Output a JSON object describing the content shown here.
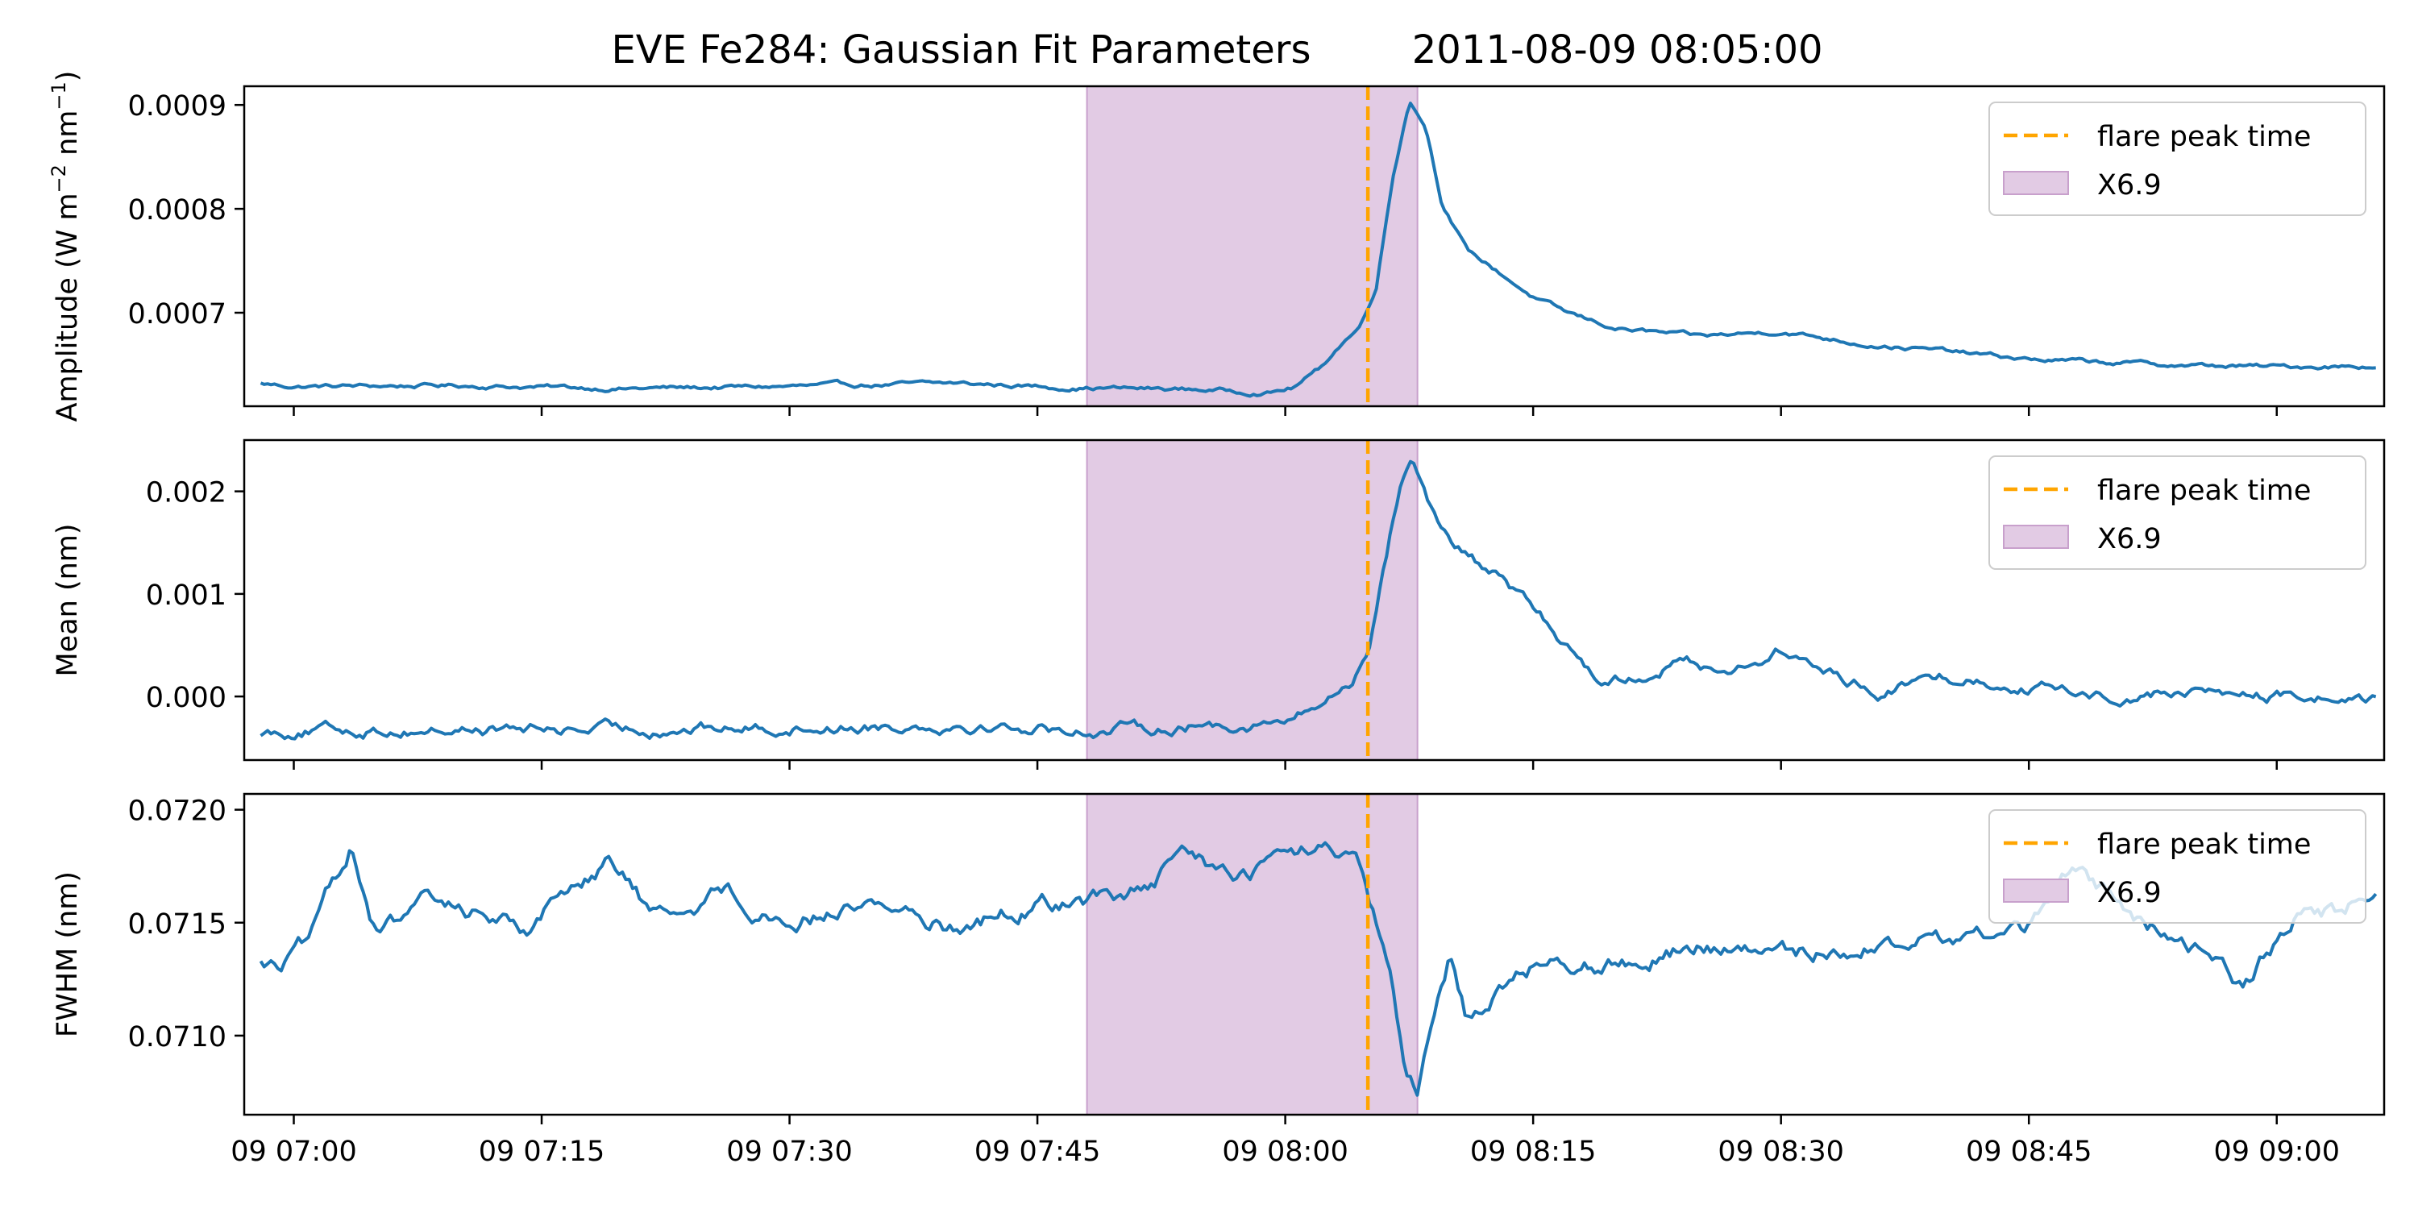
{
  "figure": {
    "title_left": "EVE Fe284: Gaussian Fit Parameters",
    "title_right": "2011-08-09 08:05:00"
  },
  "colors": {
    "line": "#1f77b4",
    "peak_line": "#ffa500",
    "shade_fill": "#e2cbe4",
    "shade_edge": "#c8a0cc",
    "axes": "#000000"
  },
  "chart_data": [
    {
      "type": "line",
      "ylabel_main": "Amplitude (W m",
      "ylabel_exp1": "−2",
      "ylabel_mid": " nm",
      "ylabel_exp2": "−1",
      "ylabel_end": ")",
      "xlim": [
        "2011-08-09 06:57:00",
        "2011-08-09 09:06:30"
      ],
      "ylim": [
        0.00061,
        0.000918
      ],
      "yticks": [
        0.0007,
        0.0008,
        0.0009
      ],
      "ytick_labels": [
        "0.0007",
        "0.0008",
        "0.0009"
      ],
      "grid": false,
      "legend": {
        "placement": "upper right",
        "entries": [
          "flare peak time",
          "X6.9"
        ]
      },
      "shaded_span": {
        "start": "2011-08-09 07:48:00",
        "end": "2011-08-09 08:08:00",
        "label": "X6.9"
      },
      "vline": {
        "x": "2011-08-09 08:05:00",
        "label": "flare peak time"
      },
      "series": [
        {
          "anchors": [
            [
              "2011-08-09 06:57:00",
              0.000633
            ],
            [
              "2011-08-09 07:00:00",
              0.000629
            ],
            [
              "2011-08-09 07:10:00",
              0.00063
            ],
            [
              "2011-08-09 07:20:00",
              0.000627
            ],
            [
              "2011-08-09 07:30:00",
              0.000629
            ],
            [
              "2011-08-09 07:40:00",
              0.000632
            ],
            [
              "2011-08-09 07:47:00",
              0.000628
            ],
            [
              "2011-08-09 07:55:00",
              0.000626
            ],
            [
              "2011-08-09 07:59:00",
              0.000623
            ],
            [
              "2011-08-09 08:00:30",
              0.000628
            ],
            [
              "2011-08-09 08:02:00",
              0.000645
            ],
            [
              "2011-08-09 08:03:30",
              0.000672
            ],
            [
              "2011-08-09 08:04:30",
              0.000686
            ],
            [
              "2011-08-09 08:05:30",
              0.000725
            ],
            [
              "2011-08-09 08:06:30",
              0.00083
            ],
            [
              "2011-08-09 08:07:30",
              0.000905
            ],
            [
              "2011-08-09 08:08:30",
              0.00088
            ],
            [
              "2011-08-09 08:09:30",
              0.000805
            ],
            [
              "2011-08-09 08:11:00",
              0.00076
            ],
            [
              "2011-08-09 08:13:00",
              0.000738
            ],
            [
              "2011-08-09 08:15:00",
              0.000715
            ],
            [
              "2011-08-09 08:17:00",
              0.0007
            ],
            [
              "2011-08-09 08:20:00",
              0.000685
            ],
            [
              "2011-08-09 08:25:00",
              0.000677
            ],
            [
              "2011-08-09 08:30:00",
              0.000682
            ],
            [
              "2011-08-09 08:35:00",
              0.00067
            ],
            [
              "2011-08-09 08:40:00",
              0.000663
            ],
            [
              "2011-08-09 08:45:00",
              0.000655
            ],
            [
              "2011-08-09 08:50:00",
              0.000652
            ],
            [
              "2011-08-09 08:55:00",
              0.000649
            ],
            [
              "2011-08-09 09:00:00",
              0.000648
            ],
            [
              "2011-08-09 09:06:00",
              0.000649
            ]
          ],
          "noise": 1.5e-06
        }
      ]
    },
    {
      "type": "line",
      "ylabel_main": "Mean (nm)",
      "xlim": [
        "2011-08-09 06:57:00",
        "2011-08-09 09:06:30"
      ],
      "ylim": [
        -0.00062,
        0.0025
      ],
      "yticks": [
        0.0,
        0.001,
        0.002
      ],
      "ytick_labels": [
        "0.000",
        "0.001",
        "0.002"
      ],
      "grid": false,
      "legend": {
        "placement": "upper right",
        "entries": [
          "flare peak time",
          "X6.9"
        ]
      },
      "shaded_span": {
        "start": "2011-08-09 07:48:00",
        "end": "2011-08-09 08:08:00",
        "label": "X6.9"
      },
      "vline": {
        "x": "2011-08-09 08:05:00",
        "label": "flare peak time"
      },
      "series": [
        {
          "anchors": [
            [
              "2011-08-09 06:57:00",
              -0.00035
            ],
            [
              "2011-08-09 07:00:00",
              -0.00033
            ],
            [
              "2011-08-09 07:10:00",
              -0.00032
            ],
            [
              "2011-08-09 07:20:00",
              -0.00032
            ],
            [
              "2011-08-09 07:30:00",
              -0.0003
            ],
            [
              "2011-08-09 07:40:00",
              -0.00027
            ],
            [
              "2011-08-09 07:48:00",
              -0.00033
            ],
            [
              "2011-08-09 07:55:00",
              -0.00028
            ],
            [
              "2011-08-09 08:00:00",
              -0.00025
            ],
            [
              "2011-08-09 08:02:00",
              -0.0001
            ],
            [
              "2011-08-09 08:04:00",
              0.00015
            ],
            [
              "2011-08-09 08:05:00",
              0.00045
            ],
            [
              "2011-08-09 08:06:00",
              0.0013
            ],
            [
              "2011-08-09 08:07:00",
              0.0021
            ],
            [
              "2011-08-09 08:07:40",
              0.00235
            ],
            [
              "2011-08-09 08:08:30",
              0.002
            ],
            [
              "2011-08-09 08:09:30",
              0.0016
            ],
            [
              "2011-08-09 08:11:00",
              0.00135
            ],
            [
              "2011-08-09 08:13:00",
              0.00115
            ],
            [
              "2011-08-09 08:15:00",
              0.00085
            ],
            [
              "2011-08-09 08:17:00",
              0.0005
            ],
            [
              "2011-08-09 08:19:00",
              0.00018
            ],
            [
              "2011-08-09 08:21:00",
              0.00018
            ],
            [
              "2011-08-09 08:24:00",
              0.00035
            ],
            [
              "2011-08-09 08:27:00",
              0.00025
            ],
            [
              "2011-08-09 08:30:00",
              0.00045
            ],
            [
              "2011-08-09 08:33:00",
              0.00022
            ],
            [
              "2011-08-09 08:36:00",
              5e-05
            ],
            [
              "2011-08-09 08:40:00",
              0.0002
            ],
            [
              "2011-08-09 08:45:00",
              0.0001
            ],
            [
              "2011-08-09 08:50:00",
              0.0
            ],
            [
              "2011-08-09 08:55:00",
              5e-05
            ],
            [
              "2011-08-09 09:00:00",
              0.0
            ],
            [
              "2011-08-09 09:06:00",
              -2e-05
            ]
          ],
          "noise": 4e-05
        }
      ]
    },
    {
      "type": "line",
      "ylabel_main": "FWHM (nm)",
      "xlim": [
        "2011-08-09 06:57:00",
        "2011-08-09 09:06:30"
      ],
      "ylim": [
        0.07065,
        0.07207
      ],
      "yticks": [
        0.071,
        0.0715,
        0.072
      ],
      "ytick_labels": [
        "0.0710",
        "0.0715",
        "0.0720"
      ],
      "grid": false,
      "legend": {
        "placement": "upper right",
        "entries": [
          "flare peak time",
          "X6.9"
        ]
      },
      "shaded_span": {
        "start": "2011-08-09 07:48:00",
        "end": "2011-08-09 08:08:00",
        "label": "X6.9"
      },
      "vline": {
        "x": "2011-08-09 08:05:00",
        "label": "flare peak time"
      },
      "series": [
        {
          "anchors": [
            [
              "2011-08-09 06:57:00",
              0.07138
            ],
            [
              "2011-08-09 06:59:00",
              0.0713
            ],
            [
              "2011-08-09 07:01:00",
              0.07142
            ],
            [
              "2011-08-09 07:03:30",
              0.07185
            ],
            [
              "2011-08-09 07:05:00",
              0.07145
            ],
            [
              "2011-08-09 07:08:00",
              0.07158
            ],
            [
              "2011-08-09 07:11:00",
              0.07155
            ],
            [
              "2011-08-09 07:14:00",
              0.07148
            ],
            [
              "2011-08-09 07:17:00",
              0.07168
            ],
            [
              "2011-08-09 07:19:00",
              0.07178
            ],
            [
              "2011-08-09 07:22:00",
              0.07152
            ],
            [
              "2011-08-09 07:26:00",
              0.07165
            ],
            [
              "2011-08-09 07:30:00",
              0.0715
            ],
            [
              "2011-08-09 07:35:00",
              0.0716
            ],
            [
              "2011-08-09 07:40:00",
              0.07148
            ],
            [
              "2011-08-09 07:45:00",
              0.07158
            ],
            [
              "2011-08-09 07:48:00",
              0.0716
            ],
            [
              "2011-08-09 07:52:00",
              0.07165
            ],
            [
              "2011-08-09 07:54:00",
              0.07182
            ],
            [
              "2011-08-09 07:57:00",
              0.07168
            ],
            [
              "2011-08-09 08:00:00",
              0.0718
            ],
            [
              "2011-08-09 08:03:00",
              0.07182
            ],
            [
              "2011-08-09 08:04:30",
              0.07172
            ],
            [
              "2011-08-09 08:05:30",
              0.07148
            ],
            [
              "2011-08-09 08:06:30",
              0.0712
            ],
            [
              "2011-08-09 08:07:20",
              0.0708
            ],
            [
              "2011-08-09 08:08:00",
              0.07072
            ],
            [
              "2011-08-09 08:09:00",
              0.07105
            ],
            [
              "2011-08-09 08:10:00",
              0.07135
            ],
            [
              "2011-08-09 08:11:00",
              0.07108
            ],
            [
              "2011-08-09 08:13:00",
              0.07122
            ],
            [
              "2011-08-09 08:16:00",
              0.07135
            ],
            [
              "2011-08-09 08:20:00",
              0.07132
            ],
            [
              "2011-08-09 08:25:00",
              0.0714
            ],
            [
              "2011-08-09 08:30:00",
              0.07135
            ],
            [
              "2011-08-09 08:35:00",
              0.0714
            ],
            [
              "2011-08-09 08:40:00",
              0.07142
            ],
            [
              "2011-08-09 08:45:00",
              0.07148
            ],
            [
              "2011-08-09 08:48:00",
              0.07175
            ],
            [
              "2011-08-09 08:52:00",
              0.07148
            ],
            [
              "2011-08-09 08:56:00",
              0.07138
            ],
            [
              "2011-08-09 08:58:00",
              0.07122
            ],
            [
              "2011-08-09 09:01:00",
              0.07152
            ],
            [
              "2011-08-09 09:04:00",
              0.07155
            ],
            [
              "2011-08-09 09:06:00",
              0.07165
            ]
          ],
          "noise": 2.8e-05
        }
      ]
    }
  ],
  "xaxis": {
    "ticks": [
      "2011-08-09 07:00:00",
      "2011-08-09 07:15:00",
      "2011-08-09 07:30:00",
      "2011-08-09 07:45:00",
      "2011-08-09 08:00:00",
      "2011-08-09 08:15:00",
      "2011-08-09 08:30:00",
      "2011-08-09 08:45:00",
      "2011-08-09 09:00:00"
    ],
    "tick_labels": [
      "09 07:00",
      "09 07:15",
      "09 07:30",
      "09 07:45",
      "09 08:00",
      "09 08:15",
      "09 08:30",
      "09 08:45",
      "09 09:00"
    ]
  }
}
